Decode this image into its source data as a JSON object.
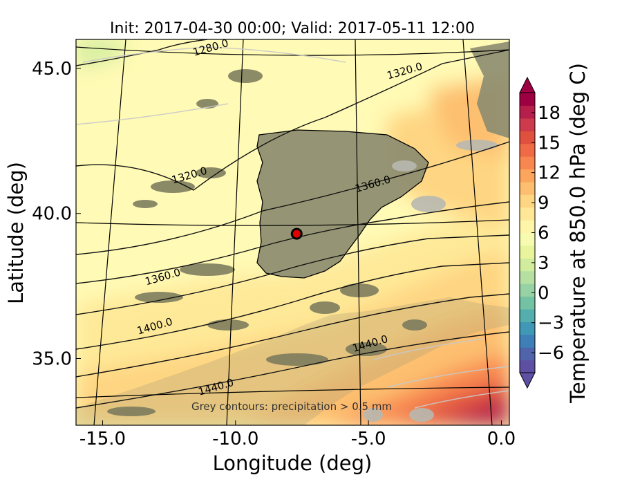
{
  "title": "Init: 2017-04-30 00:00; Valid: 2017-05-11 12:00",
  "chart_data": {
    "type": "map",
    "xlabel": "Longitude (deg)",
    "ylabel": "Latitude (deg)",
    "xlim": [
      -16.0,
      0.3
    ],
    "ylim": [
      32.7,
      46.0
    ],
    "xticks": [
      {
        "value": -15.0,
        "label": "-15.0"
      },
      {
        "value": -10.0,
        "label": "-10.0"
      },
      {
        "value": -5.0,
        "label": "-5.0"
      },
      {
        "value": 0.0,
        "label": "0.0"
      }
    ],
    "yticks": [
      {
        "value": 45.0,
        "label": "45.0"
      },
      {
        "value": 40.0,
        "label": "40.0"
      },
      {
        "value": 35.0,
        "label": "35.0"
      }
    ],
    "colorbar": {
      "label": "Temperature at 850.0 hPa (deg C)",
      "range": [
        -8,
        20
      ],
      "ticks": [
        {
          "value": 18,
          "label": "18"
        },
        {
          "value": 15,
          "label": "15"
        },
        {
          "value": 12,
          "label": "12"
        },
        {
          "value": 9,
          "label": "9"
        },
        {
          "value": 6,
          "label": "6"
        },
        {
          "value": 3,
          "label": "3"
        },
        {
          "value": 0,
          "label": "0"
        },
        {
          "value": -3,
          "label": "−3"
        },
        {
          "value": -6,
          "label": "−6"
        }
      ],
      "colors": [
        "#5e4fa2",
        "#4f64ab",
        "#3f7fb8",
        "#3f98b5",
        "#54aead",
        "#73c2a4",
        "#96d2a4",
        "#b5e0a2",
        "#d0ec9c",
        "#e9f59d",
        "#f7fbb0",
        "#fff5a8",
        "#fee897",
        "#fed582",
        "#fdbf6f",
        "#fca55d",
        "#f8864f",
        "#ef6a45",
        "#e0503f",
        "#cc3a4b",
        "#b4204b",
        "#9e0142"
      ]
    },
    "contour_labels": [
      {
        "text": "1280.0",
        "lon": -10.9,
        "lat": 45.6
      },
      {
        "text": "1320.0",
        "lon": -3.6,
        "lat": 44.8
      },
      {
        "text": "1320.0",
        "lon": -11.7,
        "lat": 41.2
      },
      {
        "text": "1360.0",
        "lon": -4.8,
        "lat": 40.9
      },
      {
        "text": "1360.0",
        "lon": -12.7,
        "lat": 37.7
      },
      {
        "text": "1400.0",
        "lon": -13.0,
        "lat": 36.0
      },
      {
        "text": "1440.0",
        "lon": -4.9,
        "lat": 35.4
      },
      {
        "text": "1440.0",
        "lon": -10.7,
        "lat": 33.9
      }
    ],
    "marker": {
      "name": "station",
      "lon": -7.7,
      "lat": 39.3,
      "color": "#e00000"
    },
    "annotation": "Grey contours: precipitation > 0.5 mm"
  }
}
